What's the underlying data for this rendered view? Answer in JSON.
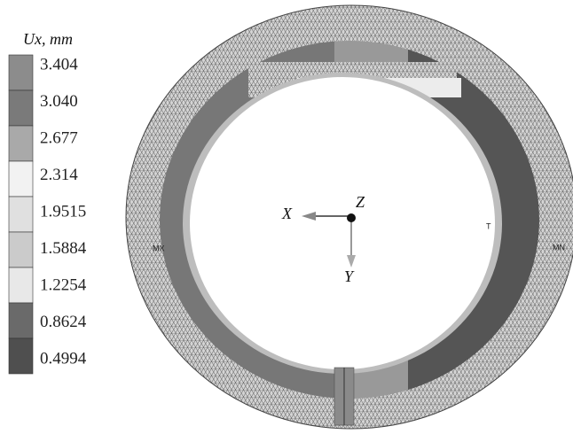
{
  "legend": {
    "title": "Ux, mm",
    "items": [
      {
        "label": "3.404",
        "color": "#8c8c8c"
      },
      {
        "label": "3.040",
        "color": "#7a7a7a"
      },
      {
        "label": "2.677",
        "color": "#a9a9a9"
      },
      {
        "label": "2.314",
        "color": "#f2f2f2"
      },
      {
        "label": "1.9515",
        "color": "#e0e0e0"
      },
      {
        "label": "1.5884",
        "color": "#cbcbcb"
      },
      {
        "label": "1.2254",
        "color": "#e8e8e8"
      },
      {
        "label": "0.8624",
        "color": "#6a6a6a"
      },
      {
        "label": "0.4994",
        "color": "#4f4f4f"
      }
    ]
  },
  "axes": {
    "x": "X",
    "y": "Y",
    "z": "Z"
  },
  "markers": {
    "max": "MX",
    "min": "MN",
    "t": "T"
  }
}
